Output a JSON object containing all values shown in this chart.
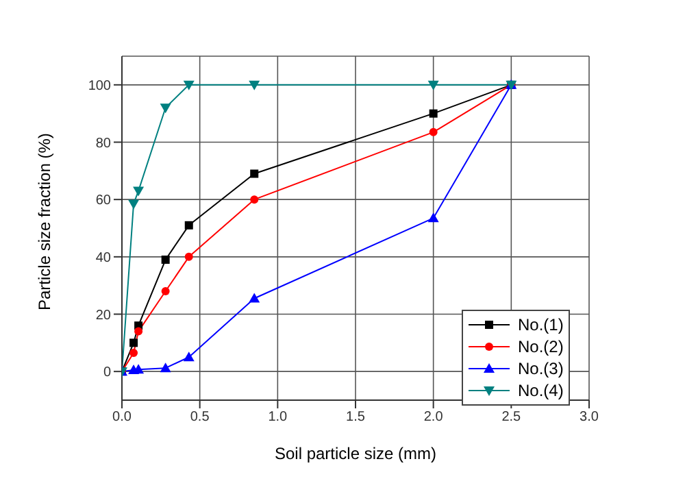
{
  "chart_data": {
    "type": "line",
    "xlabel": "Soil particle size (mm)",
    "ylabel": "Particle size fraction (%)",
    "x": [
      0,
      0.075,
      0.106,
      0.28,
      0.43,
      0.85,
      2.0,
      2.5
    ],
    "series": [
      {
        "name": "No.(1)",
        "color": "#000000",
        "marker": "square",
        "values": [
          0,
          10,
          16,
          39,
          51,
          69,
          90,
          100
        ]
      },
      {
        "name": "No.(2)",
        "color": "#ff0000",
        "marker": "circle",
        "values": [
          0,
          6.5,
          14,
          28,
          40,
          60,
          83.5,
          100
        ]
      },
      {
        "name": "No.(3)",
        "color": "#0000ff",
        "marker": "triangle",
        "values": [
          0,
          0.5,
          0.7,
          1.2,
          5,
          25.5,
          53.5,
          100
        ]
      },
      {
        "name": "No.(4)",
        "color": "#008080",
        "marker": "triangle-down",
        "values": [
          0,
          58.5,
          63,
          92,
          100,
          100,
          100,
          100
        ]
      }
    ],
    "xlim": [
      0,
      3.0
    ],
    "xticks": [
      {
        "value": 0,
        "label": "0.0"
      },
      {
        "value": 0.5,
        "label": "0.5"
      },
      {
        "value": 1,
        "label": "1.0"
      },
      {
        "value": 1.5,
        "label": "1.5"
      },
      {
        "value": 2,
        "label": "2.0"
      },
      {
        "value": 2.5,
        "label": "2.5"
      },
      {
        "value": 3,
        "label": "3.0"
      }
    ],
    "ylim": [
      -10,
      110
    ],
    "yticks": [
      0,
      20,
      40,
      60,
      80,
      100
    ],
    "grid": true,
    "legend": "bottom right",
    "line_style": "solid"
  }
}
